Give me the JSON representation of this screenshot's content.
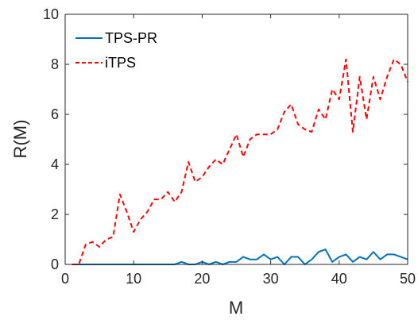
{
  "chart_data": {
    "type": "line",
    "title": "",
    "xlabel": "M",
    "ylabel": "R(M)",
    "xlim": [
      0,
      50
    ],
    "ylim": [
      0,
      10
    ],
    "xticks": [
      0,
      10,
      20,
      30,
      40,
      50
    ],
    "yticks": [
      0,
      2,
      4,
      6,
      8,
      10
    ],
    "grid": false,
    "legend_position": "top-left",
    "x": [
      1,
      2,
      3,
      4,
      5,
      6,
      7,
      8,
      9,
      10,
      11,
      12,
      13,
      14,
      15,
      16,
      17,
      18,
      19,
      20,
      21,
      22,
      23,
      24,
      25,
      26,
      27,
      28,
      29,
      30,
      31,
      32,
      33,
      34,
      35,
      36,
      37,
      38,
      39,
      40,
      41,
      42,
      43,
      44,
      45,
      46,
      47,
      48,
      49,
      50
    ],
    "series": [
      {
        "name": "TPS-PR",
        "color": "#0072BD",
        "dash": "solid",
        "values": [
          0,
          0,
          0,
          0,
          0,
          0,
          0,
          0,
          0,
          0,
          0,
          0,
          0,
          0,
          0,
          0,
          0.1,
          0,
          0,
          0.1,
          0,
          0.1,
          0,
          0.1,
          0.1,
          0.3,
          0.2,
          0.2,
          0.4,
          0.2,
          0.3,
          0,
          0.3,
          0.3,
          0,
          0.2,
          0.5,
          0.6,
          0.1,
          0.3,
          0.4,
          0.1,
          0.3,
          0.2,
          0.5,
          0.2,
          0.4,
          0.4,
          0.3,
          0.2
        ]
      },
      {
        "name": "iTPS",
        "color": "#FF0000",
        "dash": "dashed",
        "values": [
          0,
          0,
          0.8,
          0.9,
          0.7,
          1.0,
          1.1,
          2.8,
          2.1,
          1.3,
          1.8,
          2.1,
          2.6,
          2.6,
          2.9,
          2.5,
          2.9,
          4.1,
          3.3,
          3.5,
          3.9,
          4.2,
          4.0,
          4.6,
          5.2,
          4.3,
          5.0,
          5.2,
          5.2,
          5.2,
          5.4,
          6.1,
          6.4,
          5.6,
          5.4,
          5.3,
          6.2,
          5.8,
          7.0,
          6.6,
          8.2,
          5.3,
          7.5,
          5.8,
          7.5,
          6.6,
          7.5,
          8.2,
          8.0,
          7.3
        ]
      }
    ]
  }
}
